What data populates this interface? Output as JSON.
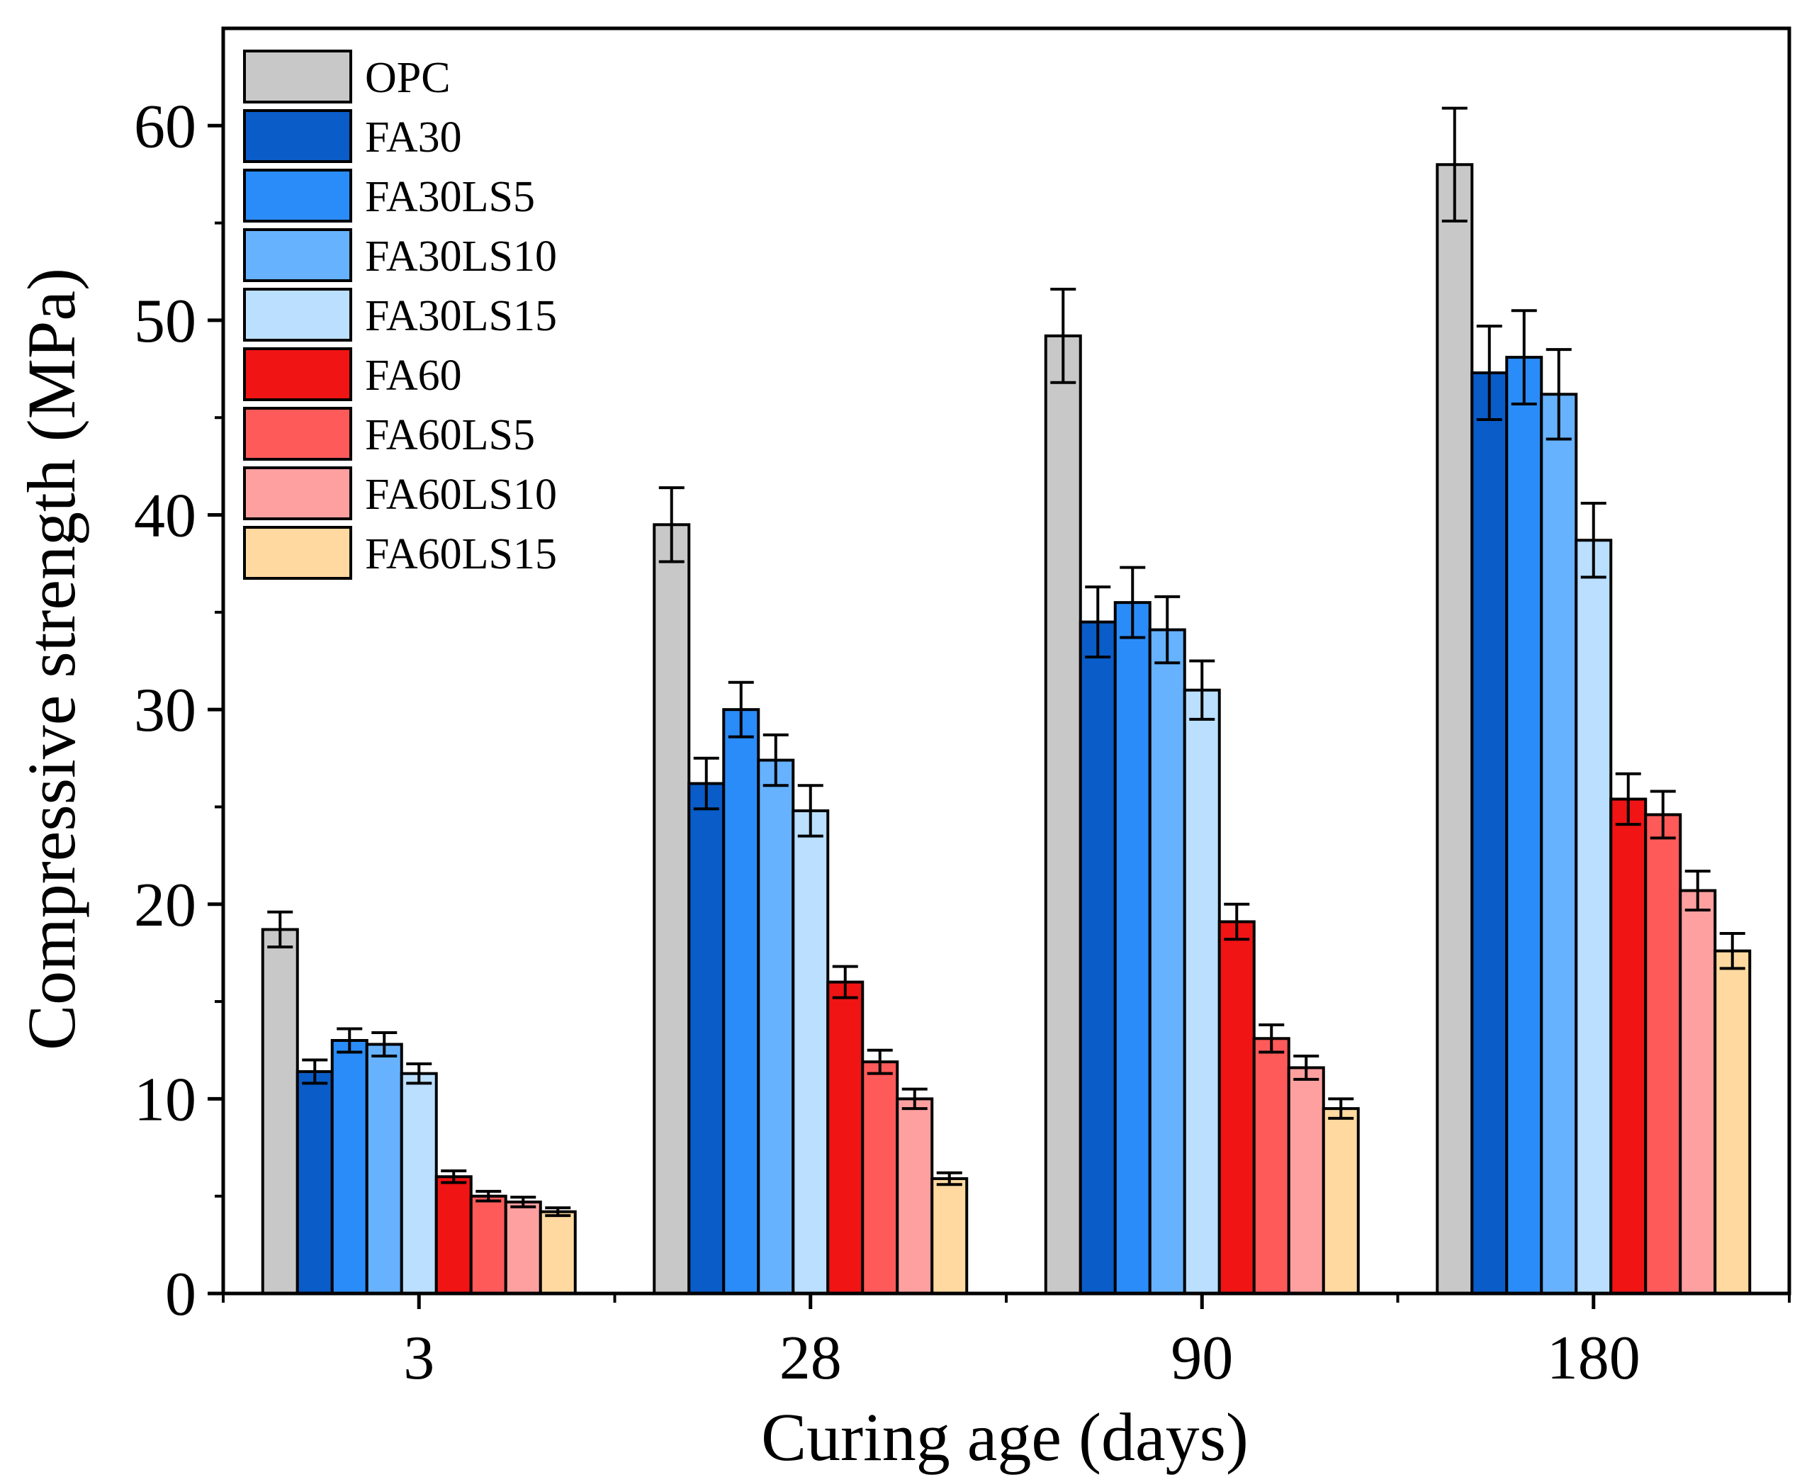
{
  "chart_data": {
    "type": "bar",
    "title": "",
    "xlabel": "Curing age (days)",
    "ylabel": "Compressive strength (MPa)",
    "categories": [
      "3",
      "28",
      "90",
      "180"
    ],
    "ylim": [
      0,
      65
    ],
    "yticks": [
      0,
      10,
      20,
      30,
      40,
      50,
      60
    ],
    "ytick_labels": [
      "0",
      "10",
      "20",
      "30",
      "40",
      "50",
      "60"
    ],
    "legend_position": "top-left",
    "series": [
      {
        "name": "OPC",
        "color": "#C8C8C8",
        "values": [
          18.7,
          39.5,
          49.2,
          58.0
        ],
        "errors": [
          0.9,
          1.9,
          2.4,
          2.9
        ]
      },
      {
        "name": "FA30",
        "color": "#0A5CC8",
        "values": [
          11.4,
          26.2,
          34.5,
          47.3
        ],
        "errors": [
          0.6,
          1.3,
          1.8,
          2.4
        ]
      },
      {
        "name": "FA30LS5",
        "color": "#2A8CF8",
        "values": [
          13.0,
          30.0,
          35.5,
          48.1
        ],
        "errors": [
          0.6,
          1.4,
          1.8,
          2.4
        ]
      },
      {
        "name": "FA30LS10",
        "color": "#66B2FF",
        "values": [
          12.8,
          27.4,
          34.1,
          46.2
        ],
        "errors": [
          0.6,
          1.3,
          1.7,
          2.3
        ]
      },
      {
        "name": "FA30LS15",
        "color": "#BADFFF",
        "values": [
          11.3,
          24.8,
          31.0,
          38.7
        ],
        "errors": [
          0.5,
          1.3,
          1.5,
          1.9
        ]
      },
      {
        "name": "FA60",
        "color": "#F01414",
        "values": [
          6.0,
          16.0,
          19.1,
          25.4
        ],
        "errors": [
          0.3,
          0.8,
          0.9,
          1.3
        ]
      },
      {
        "name": "FA60LS5",
        "color": "#FF5A5A",
        "values": [
          5.0,
          11.9,
          13.1,
          24.6
        ],
        "errors": [
          0.25,
          0.6,
          0.7,
          1.2
        ]
      },
      {
        "name": "FA60LS10",
        "color": "#FFA0A0",
        "values": [
          4.7,
          10.0,
          11.6,
          20.7
        ],
        "errors": [
          0.25,
          0.5,
          0.6,
          1.0
        ]
      },
      {
        "name": "FA60LS15",
        "color": "#FFD9A0",
        "values": [
          4.2,
          5.9,
          9.5,
          17.6
        ],
        "errors": [
          0.2,
          0.3,
          0.5,
          0.9
        ]
      }
    ]
  }
}
